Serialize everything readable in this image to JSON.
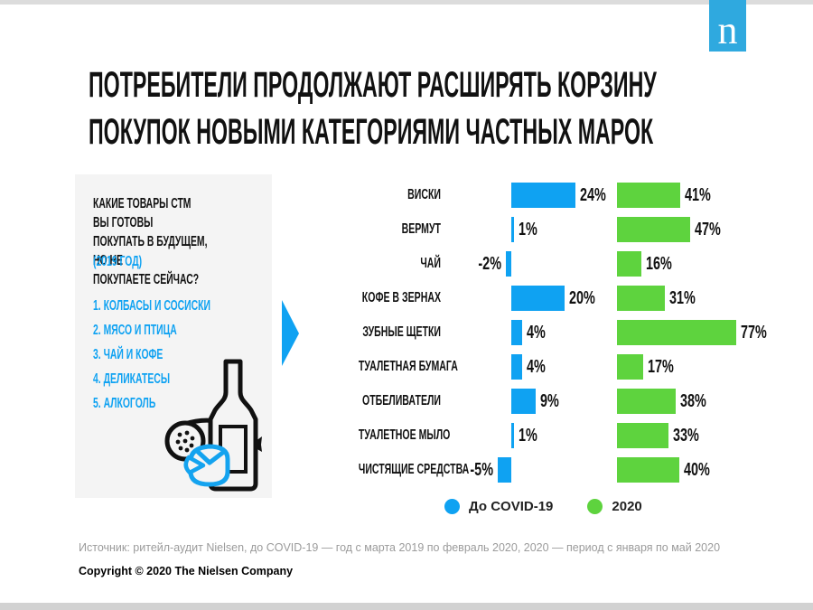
{
  "page": {
    "logo_letter": "n",
    "title_line1": "ПОТРЕБИТЕЛИ ПРОДОЛЖАЮТ РАСШИРЯТЬ КОРЗИНУ",
    "title_line2": "ПОКУПОК НОВЫМИ КАТЕГОРИЯМИ ЧАСТНЫХ МАРОК"
  },
  "panel": {
    "question": "КАКИЕ ТОВАРЫ СТМ ВЫ ГОТОВЫ\nПОКУПАТЬ В БУДУЩЕМ, НО НЕ\nПОКУПАЕТЕ СЕЙЧАС?",
    "year_note": "(2019 ГОД)",
    "list": [
      "1. КОЛБАСЫ И СОСИСКИ",
      "2. МЯСО И ПТИЦА",
      "3. ЧАЙ И КОФЕ",
      "4. ДЕЛИКАТЕСЫ",
      "5. АЛКОГОЛЬ"
    ]
  },
  "chart_data": {
    "type": "bar",
    "orientation": "horizontal",
    "categories": [
      "ВИСКИ",
      "ВЕРМУТ",
      "ЧАЙ",
      "КОФЕ В ЗЕРНАХ",
      "ЗУБНЫЕ ЩЕТКИ",
      "ТУАЛЕТНАЯ БУМАГА",
      "ОТБЕЛИВАТЕЛИ",
      "ТУАЛЕТНОЕ МЫЛО",
      "ЧИСТЯЩИЕ СРЕДСТВА"
    ],
    "series": [
      {
        "name": "До COVID-19",
        "color": "#0fa2f2",
        "values": [
          24,
          1,
          -2,
          20,
          4,
          4,
          9,
          1,
          -5
        ]
      },
      {
        "name": "2020",
        "color": "#5ed33e",
        "values": [
          41,
          47,
          16,
          31,
          77,
          17,
          38,
          33,
          40
        ]
      }
    ],
    "value_suffix": "%",
    "notes": "negative values drawn extending left of baseline; data labels at bar ends; no axis gridlines"
  },
  "legend": [
    {
      "label": "До COVID-19",
      "color": "#0fa2f2"
    },
    {
      "label": "2020",
      "color": "#5ed33e"
    }
  ],
  "footer": {
    "source": "Источник: ритейл-аудит Nielsen, до COVID-19 — год с марта 2019 по февраль 2020, 2020 — период с января по май 2020",
    "copyright": "Copyright © 2020 The Nielsen Company"
  },
  "colors": {
    "blue": "#0fa2f2",
    "green": "#5ed33e",
    "logo_blue": "#2fa9df",
    "panel_bg": "#f4f4f4",
    "text_black": "#111111",
    "source_gray": "#9b9b9b",
    "border_gray": "#d2d2d2"
  }
}
